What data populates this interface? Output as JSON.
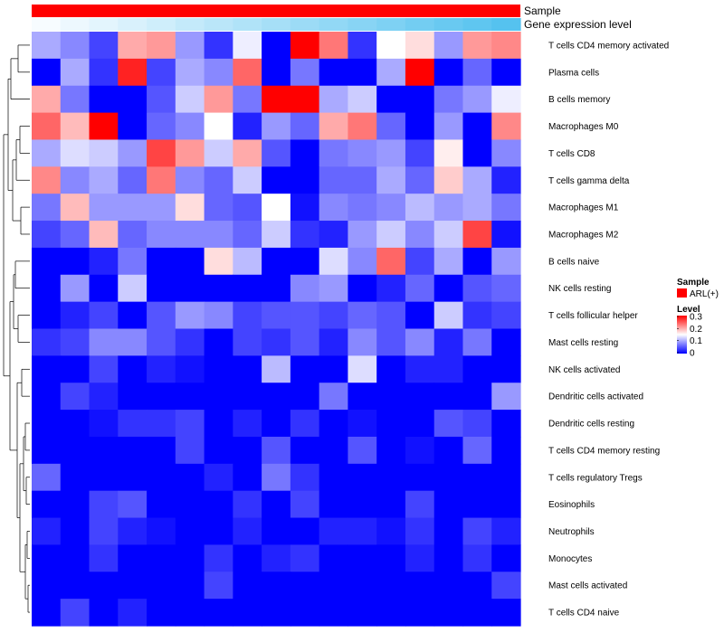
{
  "chart_data": {
    "type": "heatmap",
    "title": "",
    "annotations": {
      "sample_label": "Sample",
      "sample_color": "#ff0000",
      "expression_label": "Gene expression level",
      "expression_gradient": [
        "#f7fcff",
        "#55c2ef"
      ]
    },
    "rows": [
      "T cells CD4 memory activated",
      "Plasma cells",
      "B cells memory",
      "Macrophages M0",
      "T cells CD8",
      "T cells gamma delta",
      "Macrophages M1",
      "Macrophages M2",
      "B cells naive",
      "NK cells resting",
      "T cells follicular helper",
      "Mast cells resting",
      "NK cells activated",
      "Dendritic cells activated",
      "Dendritic cells resting",
      "T cells CD4 memory resting",
      "T cells regulatory  Tregs",
      "Eosinophils",
      "Neutrophils",
      "Monocytes",
      "Mast cells activated",
      "T cells CD4 naive"
    ],
    "values": [
      [
        0.1,
        0.08,
        0.04,
        0.2,
        0.21,
        0.09,
        0.03,
        0.14,
        0.0,
        0.3,
        0.23,
        0.03,
        0.15,
        0.17,
        0.09,
        0.21,
        0.22
      ],
      [
        0.0,
        0.1,
        0.03,
        0.28,
        0.04,
        0.1,
        0.08,
        0.24,
        0.0,
        0.07,
        0.0,
        0.0,
        0.1,
        0.3,
        0.0,
        0.06,
        0.0
      ],
      [
        0.2,
        0.07,
        0.0,
        0.0,
        0.05,
        0.12,
        0.21,
        0.07,
        0.3,
        0.3,
        0.1,
        0.12,
        0.0,
        0.0,
        0.07,
        0.09,
        0.14
      ],
      [
        0.24,
        0.19,
        0.3,
        0.0,
        0.06,
        0.08,
        0.15,
        0.02,
        0.09,
        0.06,
        0.2,
        0.23,
        0.06,
        0.0,
        0.09,
        0.0,
        0.22
      ],
      [
        0.1,
        0.13,
        0.12,
        0.09,
        0.26,
        0.21,
        0.12,
        0.2,
        0.05,
        0.0,
        0.07,
        0.08,
        0.09,
        0.04,
        0.16,
        0.0,
        0.08
      ],
      [
        0.22,
        0.08,
        0.1,
        0.06,
        0.23,
        0.08,
        0.06,
        0.12,
        0.0,
        0.0,
        0.06,
        0.06,
        0.1,
        0.06,
        0.18,
        0.1,
        0.02
      ],
      [
        0.07,
        0.19,
        0.09,
        0.09,
        0.09,
        0.17,
        0.06,
        0.05,
        0.15,
        0.01,
        0.08,
        0.07,
        0.08,
        0.11,
        0.09,
        0.1,
        0.07
      ],
      [
        0.04,
        0.06,
        0.19,
        0.06,
        0.08,
        0.08,
        0.08,
        0.06,
        0.12,
        0.03,
        0.02,
        0.09,
        0.12,
        0.08,
        0.12,
        0.26,
        0.01
      ],
      [
        0.0,
        0.0,
        0.02,
        0.07,
        0.0,
        0.0,
        0.17,
        0.11,
        0.0,
        0.0,
        0.13,
        0.08,
        0.24,
        0.04,
        0.1,
        0.0,
        0.09
      ],
      [
        0.0,
        0.09,
        0.0,
        0.12,
        0.0,
        0.0,
        0.0,
        0.0,
        0.0,
        0.08,
        0.09,
        0.0,
        0.02,
        0.06,
        0.0,
        0.05,
        0.06
      ],
      [
        0.0,
        0.02,
        0.04,
        0.0,
        0.05,
        0.09,
        0.08,
        0.04,
        0.05,
        0.05,
        0.04,
        0.06,
        0.05,
        0.0,
        0.12,
        0.03,
        0.04
      ],
      [
        0.03,
        0.04,
        0.08,
        0.08,
        0.05,
        0.03,
        0.0,
        0.04,
        0.03,
        0.05,
        0.02,
        0.08,
        0.05,
        0.08,
        0.02,
        0.07,
        0.0
      ],
      [
        0.0,
        0.0,
        0.04,
        0.0,
        0.02,
        0.01,
        0.0,
        0.0,
        0.11,
        0.0,
        0.0,
        0.13,
        0.0,
        0.02,
        0.02,
        0.0,
        0.0
      ],
      [
        0.0,
        0.04,
        0.02,
        0.0,
        0.0,
        0.0,
        0.0,
        0.0,
        0.0,
        0.0,
        0.07,
        0.0,
        0.0,
        0.0,
        0.0,
        0.0,
        0.09
      ],
      [
        0.0,
        0.0,
        0.01,
        0.03,
        0.03,
        0.04,
        0.0,
        0.02,
        0.0,
        0.03,
        0.0,
        0.01,
        0.0,
        0.0,
        0.05,
        0.04,
        0.0
      ],
      [
        0.0,
        0.0,
        0.0,
        0.0,
        0.0,
        0.04,
        0.0,
        0.0,
        0.05,
        0.0,
        0.0,
        0.05,
        0.0,
        0.01,
        0.0,
        0.06,
        0.0
      ],
      [
        0.06,
        0.0,
        0.0,
        0.0,
        0.0,
        0.0,
        0.02,
        0.0,
        0.07,
        0.03,
        0.0,
        0.0,
        0.0,
        0.0,
        0.0,
        0.0,
        0.0
      ],
      [
        0.0,
        0.0,
        0.04,
        0.05,
        0.0,
        0.0,
        0.0,
        0.03,
        0.0,
        0.04,
        0.0,
        0.0,
        0.0,
        0.04,
        0.0,
        0.0,
        0.0
      ],
      [
        0.02,
        0.0,
        0.04,
        0.02,
        0.01,
        0.0,
        0.0,
        0.02,
        0.0,
        0.0,
        0.02,
        0.02,
        0.01,
        0.03,
        0.0,
        0.04,
        0.02
      ],
      [
        0.0,
        0.0,
        0.03,
        0.0,
        0.0,
        0.0,
        0.03,
        0.0,
        0.02,
        0.03,
        0.0,
        0.0,
        0.0,
        0.02,
        0.0,
        0.03,
        0.0
      ],
      [
        0.0,
        0.0,
        0.0,
        0.0,
        0.0,
        0.0,
        0.04,
        0.0,
        0.0,
        0.0,
        0.0,
        0.0,
        0.0,
        0.0,
        0.0,
        0.0,
        0.04
      ],
      [
        0.0,
        0.04,
        0.0,
        0.02,
        0.0,
        0.0,
        0.0,
        0.0,
        0.0,
        0.0,
        0.0,
        0.0,
        0.0,
        0.0,
        0.0,
        0.0,
        0.0
      ]
    ],
    "color_scale": {
      "min": 0,
      "max": 0.3,
      "colors": [
        "#0000ff",
        "#ffffff",
        "#ff0000"
      ]
    },
    "legend": {
      "sample_title": "Sample",
      "sample_entry": "ARL(+)",
      "level_title": "Level",
      "ticks": [
        "0.3",
        "0.2",
        "0.1",
        "0"
      ],
      "placement": "right"
    },
    "dendrogram": "rows",
    "xlabel": "",
    "ylabel": ""
  }
}
